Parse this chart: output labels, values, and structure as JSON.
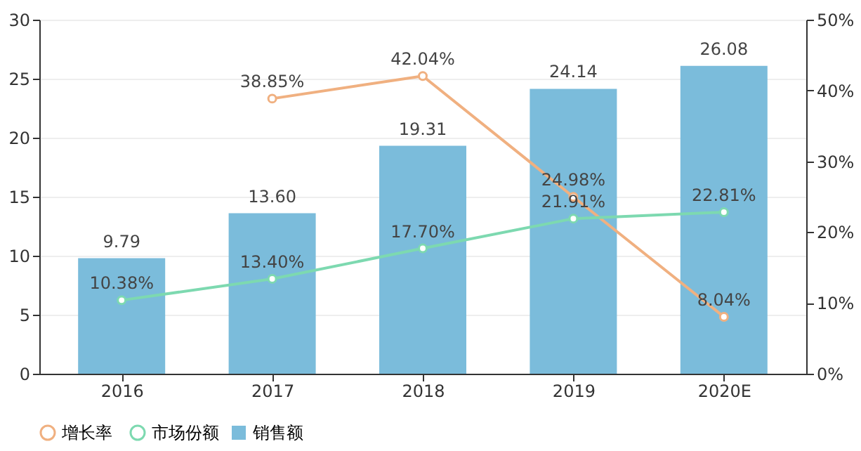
{
  "chart_data": {
    "type": "bar",
    "categories": [
      "2016",
      "2017",
      "2018",
      "2019",
      "2020E"
    ],
    "series": [
      {
        "name": "销售额",
        "color": "#7bbcdb",
        "values": [
          9.79,
          13.6,
          19.31,
          24.14,
          26.08
        ],
        "value_labels": [
          "9.79",
          "13.60",
          "19.31",
          "24.14",
          "26.08"
        ]
      },
      {
        "name": "增长率",
        "type": "line",
        "axis": "y2",
        "color": "#f0b080",
        "values": [
          null,
          38.85,
          42.04,
          24.98,
          8.04
        ],
        "value_labels": [
          null,
          "38.85%",
          "42.04%",
          "24.98%",
          "8.04%"
        ]
      },
      {
        "name": "市场份额",
        "type": "line",
        "axis": "y2",
        "color": "#7dd9b0",
        "values": [
          10.38,
          13.4,
          17.7,
          21.91,
          22.81
        ],
        "value_labels": [
          "10.38%",
          "13.40%",
          "17.70%",
          "21.91%",
          "22.81%"
        ]
      }
    ],
    "ylim": [
      0,
      30
    ],
    "yticks": [
      0,
      5,
      10,
      15,
      20,
      25,
      30
    ],
    "y2lim": [
      0,
      50
    ],
    "y2ticks": [
      {
        "value": 0,
        "label": "0%"
      },
      {
        "value": 10,
        "label": "10%"
      },
      {
        "value": 20,
        "label": "20%"
      },
      {
        "value": 30,
        "label": "30%"
      },
      {
        "value": 40,
        "label": "40%"
      },
      {
        "value": 50,
        "label": "50%"
      }
    ],
    "grid": "y",
    "legend": "bottom",
    "marker": "circle"
  }
}
